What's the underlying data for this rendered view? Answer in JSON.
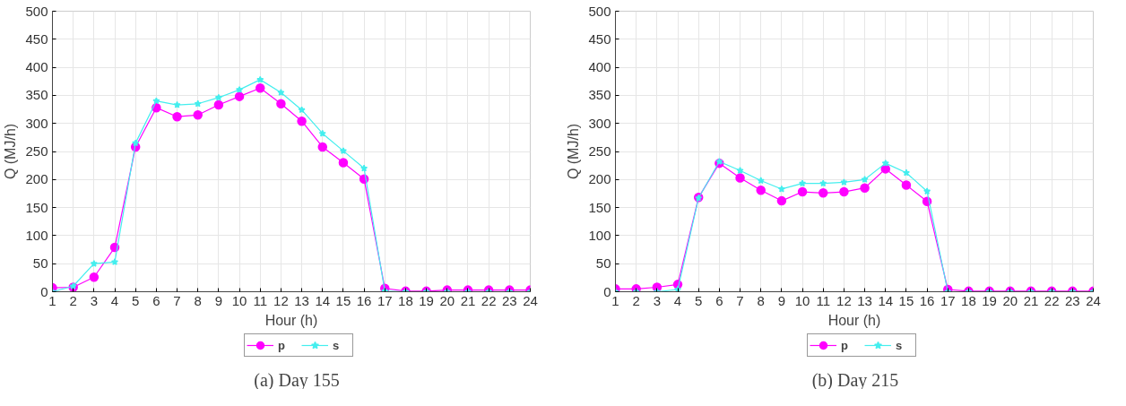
{
  "chart_data": [
    {
      "type": "line",
      "xlabel": "Hour (h)",
      "ylabel": "Q (MJ/h)",
      "x": [
        1,
        2,
        3,
        4,
        5,
        6,
        7,
        8,
        9,
        10,
        11,
        12,
        13,
        14,
        15,
        16,
        17,
        18,
        19,
        20,
        21,
        22,
        23,
        24
      ],
      "xlim": [
        1,
        24
      ],
      "xticks": [
        1,
        2,
        3,
        4,
        5,
        6,
        7,
        8,
        9,
        10,
        11,
        12,
        13,
        14,
        15,
        16,
        17,
        18,
        19,
        20,
        21,
        22,
        23,
        24
      ],
      "ylim": [
        0,
        500
      ],
      "yticks": [
        0,
        50,
        100,
        150,
        200,
        250,
        300,
        350,
        400,
        450,
        500
      ],
      "grid": true,
      "legend": "bottom",
      "line_style": "solid",
      "annotations": [
        "(a)  Day 155"
      ],
      "series": [
        {
          "name": "p",
          "color": "#ff00ff",
          "marker": "circle",
          "values": [
            7,
            8,
            26,
            79,
            258,
            328,
            312,
            315,
            333,
            348,
            363,
            335,
            304,
            258,
            230,
            201,
            6,
            1,
            1,
            3,
            3,
            3,
            3,
            3
          ]
        },
        {
          "name": "s",
          "color": "#44eeee",
          "marker": "star",
          "values": [
            0,
            10,
            50,
            53,
            265,
            340,
            333,
            335,
            346,
            360,
            378,
            355,
            324,
            282,
            251,
            220,
            1,
            0,
            0,
            0,
            0,
            0,
            0,
            0
          ]
        }
      ]
    },
    {
      "type": "line",
      "xlabel": "Hour (h)",
      "ylabel": "Q (MJ/h)",
      "x": [
        1,
        2,
        3,
        4,
        5,
        6,
        7,
        8,
        9,
        10,
        11,
        12,
        13,
        14,
        15,
        16,
        17,
        18,
        19,
        20,
        21,
        22,
        23,
        24
      ],
      "xlim": [
        1,
        24
      ],
      "xticks": [
        1,
        2,
        3,
        4,
        5,
        6,
        7,
        8,
        9,
        10,
        11,
        12,
        13,
        14,
        15,
        16,
        17,
        18,
        19,
        20,
        21,
        22,
        23,
        24
      ],
      "ylim": [
        0,
        500
      ],
      "yticks": [
        0,
        50,
        100,
        150,
        200,
        250,
        300,
        350,
        400,
        450,
        500
      ],
      "grid": true,
      "legend": "bottom",
      "line_style": "solid",
      "annotations": [
        "(b)    Day 215"
      ],
      "series": [
        {
          "name": "p",
          "color": "#ff00ff",
          "marker": "circle",
          "values": [
            5,
            5,
            8,
            13,
            168,
            229,
            203,
            181,
            162,
            178,
            176,
            178,
            185,
            219,
            190,
            161,
            4,
            1,
            1,
            1,
            1,
            1,
            1,
            1
          ]
        },
        {
          "name": "s",
          "color": "#44eeee",
          "marker": "star",
          "values": [
            0,
            0,
            0,
            4,
            167,
            232,
            216,
            198,
            183,
            193,
            193,
            195,
            200,
            229,
            212,
            179,
            0,
            0,
            0,
            0,
            0,
            0,
            0,
            0
          ]
        }
      ]
    }
  ]
}
